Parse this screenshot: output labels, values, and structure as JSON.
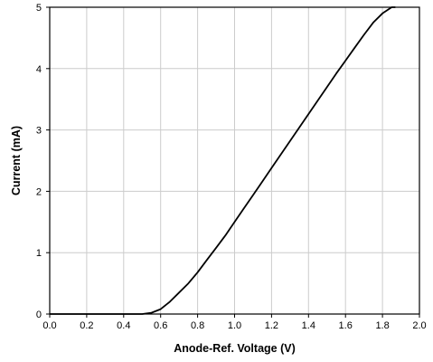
{
  "chart_data": {
    "type": "line",
    "title": "",
    "xlabel": "Anode-Ref. Voltage (V)",
    "ylabel": "Current (mA)",
    "xlim": [
      0.0,
      2.0
    ],
    "ylim": [
      0,
      5
    ],
    "x_ticks": [
      "0.0",
      "0.2",
      "0.4",
      "0.6",
      "0.8",
      "1.0",
      "1.2",
      "1.4",
      "1.6",
      "1.8",
      "2.0"
    ],
    "y_ticks": [
      "0",
      "1",
      "2",
      "3",
      "4",
      "5"
    ],
    "grid": true,
    "legend": "none",
    "line_color": "#000000",
    "grid_color": "#cccccc",
    "series": [
      {
        "x": [
          0.0,
          0.2,
          0.4,
          0.5,
          0.55,
          0.6,
          0.65,
          0.7,
          0.75,
          0.8,
          0.85,
          0.9,
          0.95,
          1.0,
          1.05,
          1.1,
          1.15,
          1.2,
          1.25,
          1.3,
          1.35,
          1.4,
          1.45,
          1.5,
          1.55,
          1.6,
          1.65,
          1.7,
          1.75,
          1.8,
          1.85,
          1.87
        ],
        "y": [
          0.0,
          0.0,
          0.0,
          0.0,
          0.02,
          0.08,
          0.2,
          0.35,
          0.5,
          0.68,
          0.88,
          1.08,
          1.28,
          1.5,
          1.72,
          1.94,
          2.16,
          2.38,
          2.6,
          2.82,
          3.04,
          3.26,
          3.48,
          3.7,
          3.92,
          4.13,
          4.34,
          4.55,
          4.75,
          4.9,
          5.0,
          5.0
        ]
      }
    ]
  }
}
